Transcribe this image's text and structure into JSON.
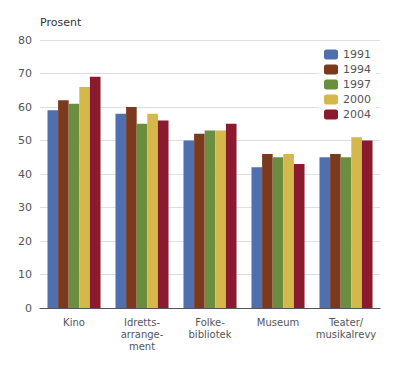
{
  "chart_data": {
    "type": "bar",
    "ylabel": "Prosent",
    "categories": [
      "Kino",
      "Idretts-\narrange-\nment",
      "Folke-\nbibliotek",
      "Museum",
      "Teater/\nmusikalrevy"
    ],
    "series": [
      {
        "name": "1991",
        "color": "#4f6faf",
        "values": [
          59,
          58,
          50,
          42,
          45
        ]
      },
      {
        "name": "1994",
        "color": "#7b3a1e",
        "values": [
          62,
          60,
          52,
          46,
          46
        ]
      },
      {
        "name": "1997",
        "color": "#6b8e3e",
        "values": [
          61,
          55,
          53,
          45,
          45
        ]
      },
      {
        "name": "2000",
        "color": "#d4b84a",
        "values": [
          66,
          58,
          53,
          46,
          51
        ]
      },
      {
        "name": "2004",
        "color": "#8b1a2e",
        "values": [
          69,
          56,
          55,
          43,
          50
        ]
      }
    ],
    "ylim": [
      0,
      80
    ],
    "yticks": [
      0,
      10,
      20,
      30,
      40,
      50,
      60,
      70,
      80
    ],
    "grid": true,
    "legend": "upper right"
  }
}
